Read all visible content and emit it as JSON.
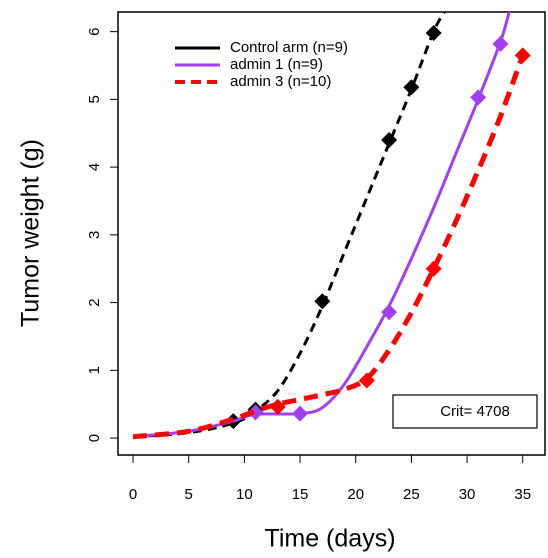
{
  "chart_data": {
    "type": "line",
    "xlabel": "Time (days)",
    "ylabel": "Tumor weight (g)",
    "xlim": [
      -1.35,
      37.0
    ],
    "ylim": [
      -0.25,
      6.29
    ],
    "xticks": [
      0,
      5,
      10,
      15,
      20,
      25,
      30,
      35
    ],
    "yticks": [
      0,
      1,
      2,
      3,
      4,
      5,
      6
    ],
    "legend": "top-left",
    "annotation": "Crit= 4708",
    "series": [
      {
        "name": "Control arm (n=9)",
        "color": "#000000",
        "dash": true,
        "x": [
          0,
          5,
          9,
          11,
          13,
          15,
          17,
          19,
          21,
          23,
          25,
          27,
          28
        ],
        "values": [
          0.02,
          0.08,
          0.22,
          0.4,
          0.7,
          1.25,
          1.95,
          2.75,
          3.55,
          4.35,
          5.15,
          6.0,
          6.3
        ],
        "marker_x": [
          9,
          11,
          17,
          23,
          25,
          27
        ],
        "marker_values": [
          0.25,
          0.42,
          2.02,
          4.4,
          5.18,
          5.98
        ]
      },
      {
        "name": "admin 1 (n=9)",
        "color": "#a040f0",
        "dash": false,
        "x": [
          0,
          5,
          9,
          11,
          15,
          17,
          19,
          21,
          23,
          25,
          27,
          29,
          31,
          33,
          33.8
        ],
        "values": [
          0.02,
          0.1,
          0.25,
          0.35,
          0.36,
          0.45,
          0.8,
          1.35,
          1.95,
          2.65,
          3.4,
          4.2,
          5.0,
          5.85,
          6.3
        ],
        "marker_x": [
          11,
          15,
          23,
          31,
          33
        ],
        "marker_values": [
          0.38,
          0.36,
          1.86,
          5.03,
          5.82
        ]
      },
      {
        "name": "admin 3 (n=10)",
        "color": "#ff0000",
        "dash": true,
        "x": [
          0,
          5,
          9,
          11,
          13,
          15,
          17,
          19,
          21,
          23,
          25,
          27,
          29,
          31,
          33,
          35
        ],
        "values": [
          0.02,
          0.1,
          0.28,
          0.4,
          0.5,
          0.57,
          0.64,
          0.72,
          0.88,
          1.3,
          1.85,
          2.5,
          3.2,
          3.95,
          4.75,
          5.65
        ],
        "marker_x": [
          13,
          21,
          27,
          35
        ],
        "marker_values": [
          0.46,
          0.85,
          2.5,
          5.65
        ]
      }
    ]
  }
}
